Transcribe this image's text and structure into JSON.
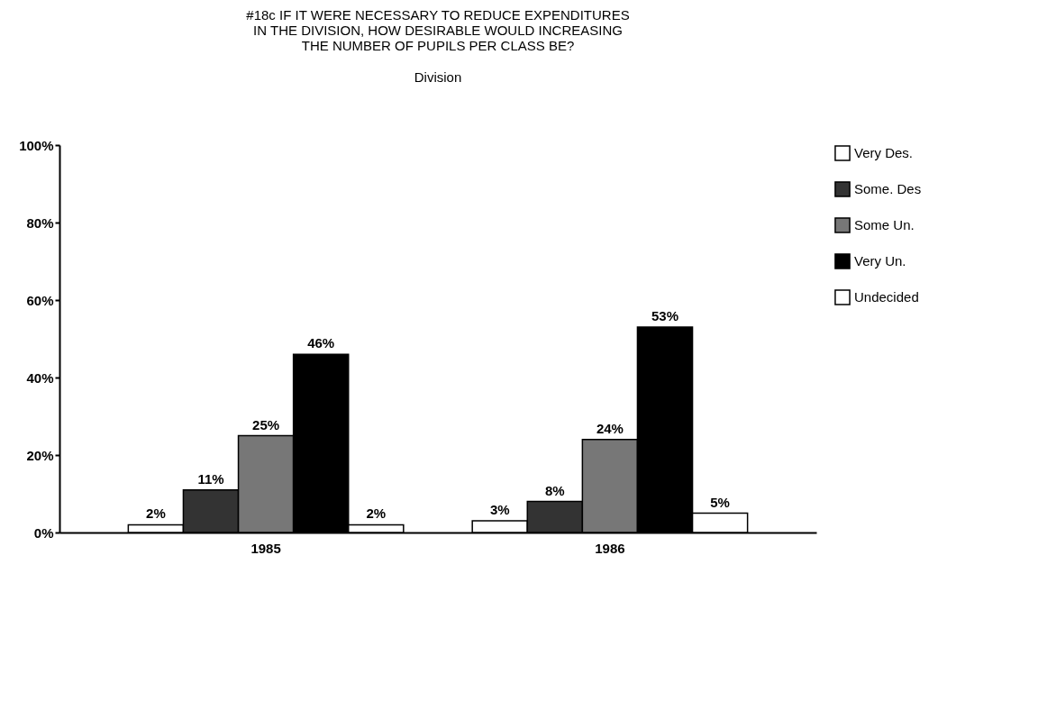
{
  "chart_data": {
    "type": "bar",
    "title": "#18c IF IT WERE NECESSARY TO REDUCE EXPENDITURES\nIN THE DIVISION, HOW DESIRABLE WOULD INCREASING\nTHE NUMBER OF PUPILS PER CLASS BE?",
    "subtitle": "Division",
    "categories": [
      "1985",
      "1986"
    ],
    "series": [
      {
        "name": "Very Des.",
        "color": "#ffffff",
        "values": [
          2,
          3
        ],
        "value_labels": [
          "2%",
          "3%"
        ]
      },
      {
        "name": "Some. Des",
        "color": "#333333",
        "values": [
          11,
          8
        ],
        "value_labels": [
          "11%",
          "8%"
        ]
      },
      {
        "name": "Some Un.",
        "color": "#777777",
        "values": [
          25,
          24
        ],
        "value_labels": [
          "25%",
          "24%"
        ]
      },
      {
        "name": "Very Un.",
        "color": "#000000",
        "values": [
          46,
          53
        ],
        "value_labels": [
          "46%",
          "53%"
        ]
      },
      {
        "name": "Undecided",
        "color": "#ffffff",
        "values": [
          2,
          5
        ],
        "value_labels": [
          "2%",
          "5%"
        ]
      }
    ],
    "ylim": [
      0,
      100
    ],
    "yticks": [
      {
        "value": 0,
        "label": "0%"
      },
      {
        "value": 20,
        "label": "20%"
      },
      {
        "value": 40,
        "label": "40%"
      },
      {
        "value": 60,
        "label": "60%"
      },
      {
        "value": 80,
        "label": "80%"
      },
      {
        "value": 100,
        "label": "100%"
      }
    ],
    "grid": false,
    "legend": "right"
  }
}
